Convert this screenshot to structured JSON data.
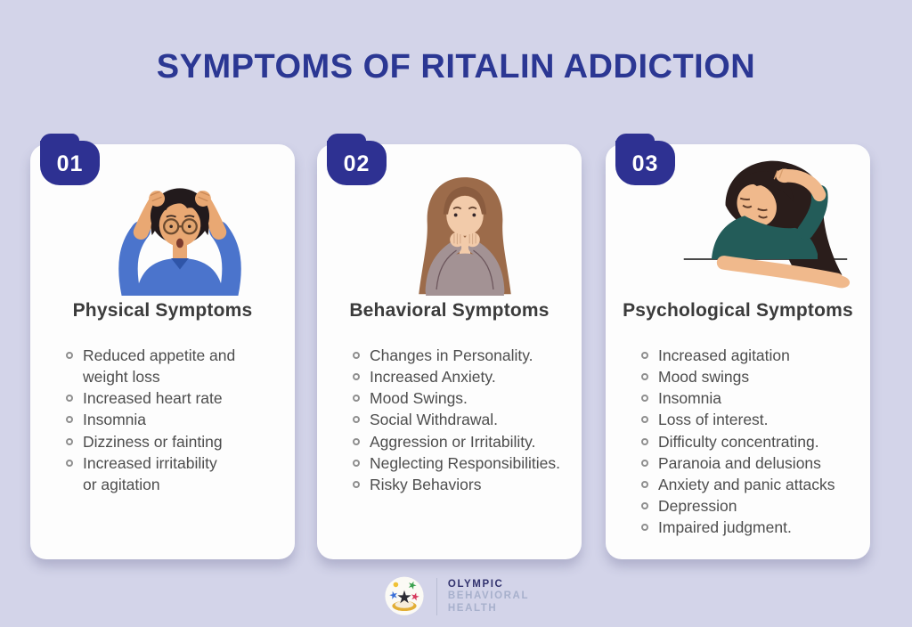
{
  "title": "SYMPTOMS OF RITALIN ADDICTION",
  "colors": {
    "background": "#d3d4e9",
    "card": "#fdfdfd",
    "accent_badge": "#2e3192",
    "title_text": "#2b3793",
    "heading_text": "#3b3b3b",
    "body_text": "#4d4d4d",
    "bullet": "#8f8f8f"
  },
  "cards": [
    {
      "number": "01",
      "heading": "Physical Symptoms",
      "illustration": "stressed-woman-holding-head",
      "items": [
        "Reduced appetite and\nweight loss",
        "Increased heart rate",
        "Insomnia",
        "Dizziness or fainting",
        "Increased irritability\nor agitation"
      ]
    },
    {
      "number": "02",
      "heading": "Behavioral Symptoms",
      "illustration": "anxious-woman-biting-nails",
      "items": [
        "Changes in Personality.",
        "Increased Anxiety.",
        "Mood Swings.",
        "Social Withdrawal.",
        "Aggression or Irritability.",
        "Neglecting Responsibilities.",
        "Risky Behaviors"
      ]
    },
    {
      "number": "03",
      "heading": "Psychological Symptoms",
      "illustration": "exhausted-woman-head-in-hand",
      "items": [
        "Increased agitation",
        "Mood swings",
        "Insomnia",
        "Loss of interest.",
        "Difficulty concentrating.",
        "Paranoia and delusions",
        "Anxiety and panic attacks",
        "Depression",
        "Impaired judgment."
      ]
    }
  ],
  "footer": {
    "brand_line1": "OLYMPIC",
    "brand_line2": "BEHAVIORAL",
    "brand_line3": "HEALTH"
  }
}
